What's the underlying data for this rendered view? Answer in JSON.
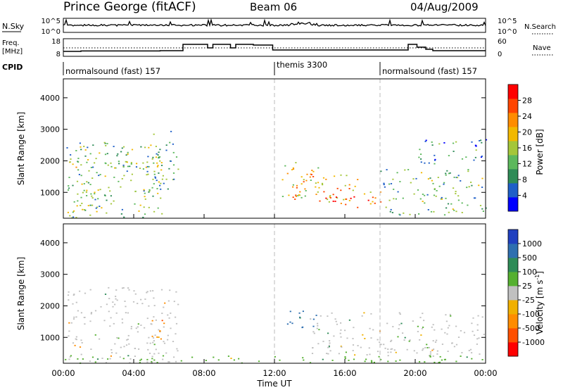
{
  "header": {
    "station": "Prince George (fitACF)",
    "beam": "Beam 06",
    "date": "04/Aug/2009"
  },
  "nsky_panel": {
    "left_label": "N.Sky",
    "left_ticks": [
      "10^5",
      "10^0"
    ],
    "right_ticks": [
      "10^5",
      "10^0"
    ],
    "right_label": "N.Search"
  },
  "freq_panel": {
    "left_label_1": "Freq.",
    "left_label_2": "[MHz]",
    "left_ticks": [
      "18",
      "8"
    ],
    "right_ticks": [
      "60",
      "0"
    ],
    "right_label": "Nave",
    "freq_steps": [
      [
        0.0,
        11.5
      ],
      [
        1.0,
        11.8
      ],
      [
        5.5,
        12.0
      ],
      [
        6.8,
        16.5
      ],
      [
        8.2,
        14.0
      ],
      [
        8.5,
        16.5
      ],
      [
        9.5,
        14.0
      ],
      [
        9.8,
        16.5
      ],
      [
        10.8,
        16.0
      ],
      [
        11.9,
        12.5
      ],
      [
        19.6,
        16.5
      ],
      [
        20.1,
        14.5
      ],
      [
        20.6,
        13.0
      ],
      [
        21.0,
        12.0
      ],
      [
        24.0,
        12.0
      ]
    ]
  },
  "cpid": {
    "label": "CPID",
    "segments": [
      {
        "start": 0.0,
        "text": "normalsound (fast) 157"
      },
      {
        "start": 12.0,
        "text": "themis 3300"
      },
      {
        "start": 18.0,
        "text": "normalsound (fast) 157"
      }
    ]
  },
  "chart_data": [
    {
      "type": "heatmap",
      "quantity": "Power",
      "xlabel": "",
      "ylabel": "Slant Range [km]",
      "xlim": [
        0,
        24
      ],
      "ylim": [
        180,
        4600
      ],
      "y_ticks": [
        1000,
        2000,
        3000,
        4000
      ],
      "colorbar": {
        "label": "Power [dB]",
        "range": [
          0,
          32
        ],
        "ticks": [
          "4",
          "8",
          "12",
          "16",
          "20",
          "24",
          "28"
        ],
        "colors": [
          "#0000ff",
          "#1e5fc8",
          "#2e8b57",
          "#5cb85c",
          "#a4c639",
          "#f2b800",
          "#ff8c00",
          "#ff4500",
          "#ff0000"
        ]
      },
      "regions": [
        {
          "t0": 0.1,
          "t1": 5.6,
          "r0": 200,
          "r1": 2600,
          "level": 0.4
        },
        {
          "t0": 0.3,
          "t1": 2.5,
          "r0": 1700,
          "r1": 2200,
          "level": 0.55
        },
        {
          "t0": 2.6,
          "t1": 5.6,
          "r0": 1650,
          "r1": 2500,
          "level": 0.35
        },
        {
          "t0": 0.0,
          "t1": 2.0,
          "r0": 300,
          "r1": 1100,
          "level": 0.6
        },
        {
          "t0": 5.0,
          "t1": 6.5,
          "r0": 1000,
          "r1": 3000,
          "level": 0.3
        },
        {
          "t0": 12.4,
          "t1": 14.5,
          "r0": 800,
          "r1": 2000,
          "level": 0.55
        },
        {
          "t0": 13.0,
          "t1": 18.0,
          "r0": 700,
          "r1": 1600,
          "level": 0.7
        },
        {
          "t0": 14.8,
          "t1": 18.0,
          "r0": 500,
          "r1": 900,
          "level": 0.9
        },
        {
          "t0": 18.0,
          "t1": 24.0,
          "r0": 300,
          "r1": 1800,
          "level": 0.35
        },
        {
          "t0": 20.0,
          "t1": 24.0,
          "r0": 1900,
          "r1": 2700,
          "level": 0.2
        }
      ]
    },
    {
      "type": "heatmap",
      "quantity": "Velocity",
      "xlabel": "Time UT",
      "ylabel": "Slant Range [km]",
      "xlim": [
        0,
        24
      ],
      "ylim": [
        180,
        4600
      ],
      "x_ticks": [
        "00:00",
        "04:00",
        "08:00",
        "12:00",
        "16:00",
        "20:00",
        "00:00"
      ],
      "y_ticks": [
        1000,
        2000,
        3000,
        4000
      ],
      "colorbar": {
        "label": "Velocity [m s^-1]",
        "ticks": [
          "1000",
          "500",
          "100",
          "25",
          "-25",
          "-100",
          "-500",
          "-1000"
        ],
        "colors": [
          "#2040c0",
          "#2e6fb0",
          "#2e8b57",
          "#55b030",
          "#c0c0c0",
          "#f0b000",
          "#ff8c00",
          "#ff5000",
          "#ff0000"
        ]
      },
      "regions": [
        {
          "t0": 0.1,
          "t1": 6.5,
          "r0": 200,
          "r1": 2600,
          "level": 4
        },
        {
          "t0": 5.0,
          "t1": 6.0,
          "r0": 800,
          "r1": 1600,
          "level": 6
        },
        {
          "t0": 12.6,
          "t1": 14.5,
          "r0": 1300,
          "r1": 1900,
          "level": 1
        },
        {
          "t0": 14.0,
          "t1": 24.0,
          "r0": 400,
          "r1": 1800,
          "level": 4
        },
        {
          "t0": 0.0,
          "t1": 24.0,
          "r0": 200,
          "r1": 450,
          "level": 3
        }
      ]
    }
  ]
}
